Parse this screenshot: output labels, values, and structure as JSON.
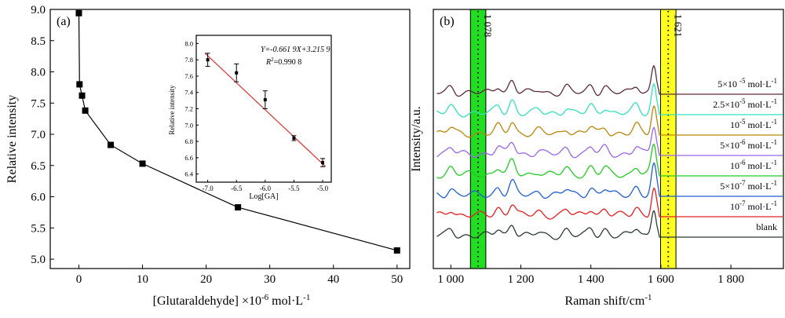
{
  "chart_data": [
    {
      "type": "line",
      "panel_label": "(a)",
      "xlabel_text": "[Glutaraldehyde] ×10",
      "xlabel_sup": "-6",
      "xlabel_units": " mol·L",
      "xlabel_units_sup": "-1",
      "ylabel": "Relative intensity",
      "xlim": [
        -4.5,
        52
      ],
      "ylim": [
        4.85,
        9.0
      ],
      "xticks": [
        0,
        10,
        20,
        30,
        40,
        50
      ],
      "yticks": [
        5.0,
        5.5,
        6.0,
        6.5,
        7.0,
        7.5,
        8.0,
        8.5,
        9.0
      ],
      "ytick_labels": [
        "5.0",
        "5.5",
        "6.0",
        "6.5",
        "7.0",
        "7.5",
        "8.0",
        "8.5",
        "9.0"
      ],
      "x": [
        0,
        0.1,
        0.5,
        1,
        5,
        10,
        25,
        50
      ],
      "y": [
        8.94,
        7.8,
        7.62,
        7.38,
        6.83,
        6.53,
        5.83,
        5.14
      ],
      "marker": "square",
      "color": "#000000",
      "inset": {
        "type": "scatter",
        "xlabel": "Log[GA]",
        "ylabel": "Relative intensity",
        "xlim": [
          -7.2,
          -4.85
        ],
        "ylim": [
          6.3,
          8.1
        ],
        "xticks": [
          -7.0,
          -6.5,
          -6.0,
          -5.5,
          -5.0
        ],
        "xtick_labels": [
          "-7.0",
          "-6.5",
          "-6.0",
          "-5.5",
          "-5.0"
        ],
        "yticks": [
          6.4,
          6.6,
          6.8,
          7.0,
          7.2,
          7.4,
          7.6,
          7.8,
          8.0
        ],
        "ytick_labels": [
          "6.4",
          "6.6",
          "6.8",
          "7.0",
          "7.2",
          "7.4",
          "7.6",
          "7.8",
          "8.0"
        ],
        "x": [
          -7.0,
          -6.5,
          -6.0,
          -5.5,
          -5.0
        ],
        "y": [
          7.8,
          7.64,
          7.31,
          6.84,
          6.54
        ],
        "yerr": [
          0.08,
          0.11,
          0.11,
          0.03,
          0.05
        ],
        "fit_slope": -0.6619,
        "fit_intercept": 3.2159,
        "fit_color": "#e03030",
        "equation_text": "Y=-0.661 9X+3.215 9",
        "r2_text": "=0.990 8"
      }
    },
    {
      "type": "line",
      "panel_label": "(b)",
      "xlabel_text": "Raman shift/cm",
      "xlabel_sup": "-1",
      "ylabel": "Intensity/a.u.",
      "xlim": [
        950,
        1950
      ],
      "xticks": [
        1000,
        1200,
        1400,
        1600,
        1800
      ],
      "xtick_labels": [
        "1 000",
        "1 200",
        "1 400",
        "1 600",
        "1 800"
      ],
      "highlight_bands": [
        {
          "center": 1078,
          "label": "1 078",
          "color": "#22dd22",
          "halfwidth": 22
        },
        {
          "center": 1621,
          "label": "1 621",
          "color": "#ffff22",
          "halfwidth": 22
        }
      ],
      "series": [
        {
          "label_main": "blank",
          "label_sup": "",
          "label_tail": "",
          "color": "#2b3a32"
        },
        {
          "label_main": "10",
          "label_sup": "-7",
          "label_tail": " mol·L",
          "color": "#e02020"
        },
        {
          "label_main": "5×10",
          "label_sup": "-7",
          "label_tail": " mol·L",
          "color": "#1f5fd0"
        },
        {
          "label_main": "10",
          "label_sup": "-6",
          "label_tail": " mol·L",
          "color": "#22cc22"
        },
        {
          "label_main": "5×10",
          "label_sup": "-6",
          "label_tail": " mol·L",
          "color": "#9966ee"
        },
        {
          "label_main": "10",
          "label_sup": "-5",
          "label_tail": " mol·L",
          "color": "#b8860b"
        },
        {
          "label_main": "2.5×10",
          "label_sup": "-5",
          "label_tail": " mol·L",
          "color": "#33e0c0"
        },
        {
          "label_main": "5×10 ",
          "label_sup": "-5",
          "label_tail": " mol·L",
          "color": "#5a2a3a"
        }
      ],
      "series_unit_sup": "-1",
      "peaks": [
        {
          "center": 1000,
          "height": 8
        },
        {
          "center": 1135,
          "height": 9
        },
        {
          "center": 1175,
          "height": 16
        },
        {
          "center": 1250,
          "height": 4
        },
        {
          "center": 1330,
          "height": 7
        },
        {
          "center": 1400,
          "height": 9
        },
        {
          "center": 1440,
          "height": 8
        },
        {
          "center": 1530,
          "height": 10
        },
        {
          "center": 1580,
          "height": 36
        }
      ]
    }
  ]
}
